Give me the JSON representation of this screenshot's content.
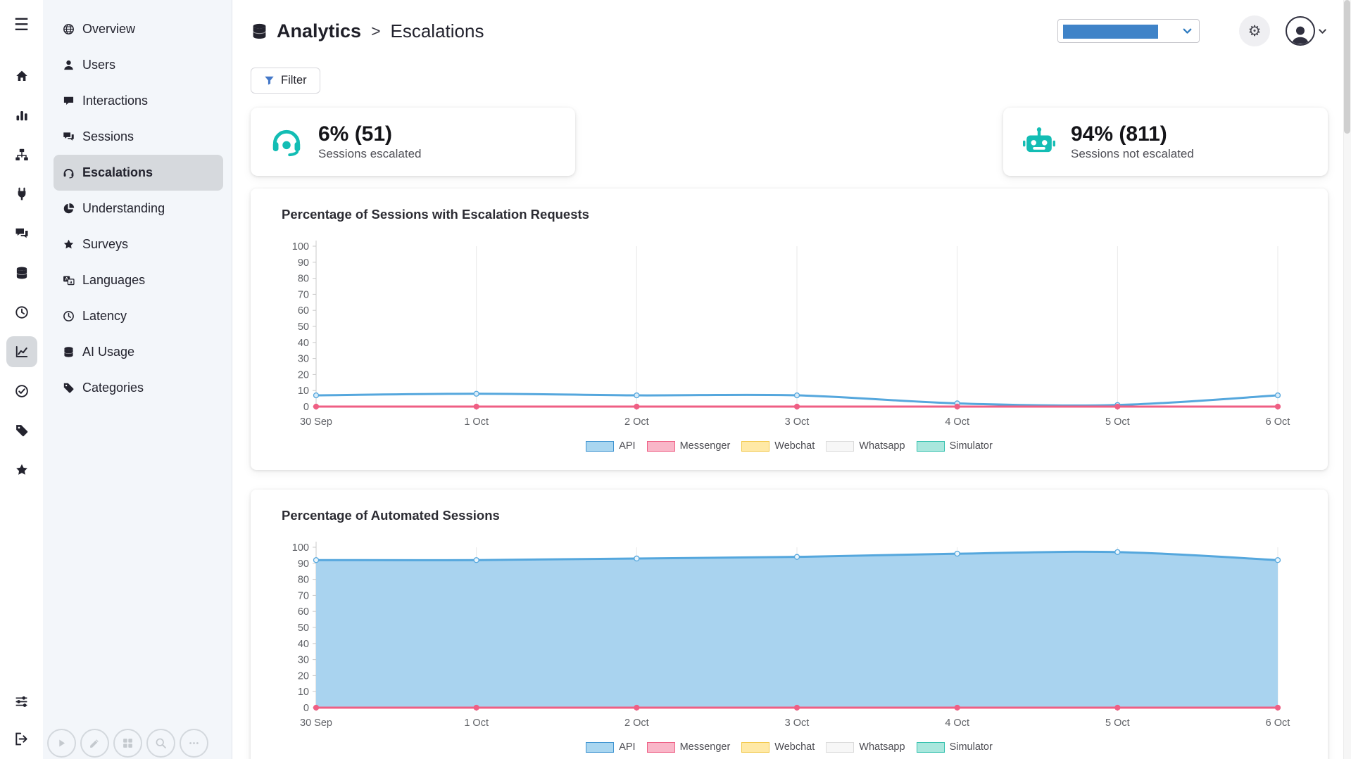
{
  "colors": {
    "teal_icon": "#13bdb4",
    "select_bar": "#3f83c8",
    "sidebar_active_bg": "#d6d9dd",
    "chart_blue": "#55a7dd",
    "chart_blue_fill": "#a9d3ef",
    "chart_pink": "#ef5f84"
  },
  "rail": {
    "menu_icon": "hamburger",
    "items": [
      {
        "name": "home",
        "icon": "home",
        "active": false
      },
      {
        "name": "metrics",
        "icon": "bar-chart",
        "active": false
      },
      {
        "name": "flows",
        "icon": "sitemap",
        "active": false
      },
      {
        "name": "integrations",
        "icon": "plug",
        "active": false
      },
      {
        "name": "conversations",
        "icon": "comments",
        "active": false
      },
      {
        "name": "data",
        "icon": "database",
        "active": false
      },
      {
        "name": "history",
        "icon": "clock",
        "active": false
      },
      {
        "name": "analytics",
        "icon": "line-chart",
        "active": true
      },
      {
        "name": "tasks",
        "icon": "check-circle",
        "active": false
      },
      {
        "name": "tags",
        "icon": "tag",
        "active": false
      },
      {
        "name": "favorites",
        "icon": "star",
        "active": false
      }
    ],
    "bottom_items": [
      {
        "name": "preferences",
        "icon": "sliders"
      },
      {
        "name": "logout",
        "icon": "sign-out"
      }
    ]
  },
  "sidebar": {
    "items": [
      {
        "label": "Overview",
        "icon": "globe",
        "active": false
      },
      {
        "label": "Users",
        "icon": "user",
        "active": false
      },
      {
        "label": "Interactions",
        "icon": "comment",
        "active": false
      },
      {
        "label": "Sessions",
        "icon": "comments",
        "active": false
      },
      {
        "label": "Escalations",
        "icon": "headset",
        "active": true
      },
      {
        "label": "Understanding",
        "icon": "pie-chart",
        "active": false
      },
      {
        "label": "Surveys",
        "icon": "star",
        "active": false
      },
      {
        "label": "Languages",
        "icon": "language",
        "active": false
      },
      {
        "label": "Latency",
        "icon": "clock",
        "active": false
      },
      {
        "label": "AI Usage",
        "icon": "database",
        "active": false
      },
      {
        "label": "Categories",
        "icon": "tag",
        "active": false
      }
    ],
    "footer_buttons": [
      {
        "name": "play",
        "icon": "play"
      },
      {
        "name": "edit",
        "icon": "pencil"
      },
      {
        "name": "grid",
        "icon": "grid"
      },
      {
        "name": "zoom",
        "icon": "search"
      },
      {
        "name": "more",
        "icon": "ellipsis"
      }
    ]
  },
  "header": {
    "section_icon": "database",
    "section": "Analytics",
    "separator": ">",
    "page": "Escalations"
  },
  "controls": {
    "filter_label": "Filter",
    "gear_icon": "gear",
    "avatar_icon": "user",
    "select_chevron_icon": "chevron-down"
  },
  "stats": [
    {
      "icon": "support-agent",
      "value": "6% (51)",
      "label": "Sessions escalated"
    },
    {
      "icon": "robot",
      "value": "94% (811)",
      "label": "Sessions not escalated"
    }
  ],
  "chart_data": [
    {
      "type": "line",
      "title": "Percentage of Sessions with Escalation Requests",
      "x": [
        "30 Sep",
        "1 Oct",
        "2 Oct",
        "3 Oct",
        "4 Oct",
        "5 Oct",
        "6 Oct"
      ],
      "ylim": [
        0,
        100
      ],
      "yticks": [
        0,
        10,
        20,
        30,
        40,
        50,
        60,
        70,
        80,
        90,
        100
      ],
      "grid": "vertical",
      "legend_position": "bottom",
      "series": [
        {
          "name": "API",
          "values": [
            7,
            8,
            7,
            7,
            2,
            1,
            7
          ],
          "color": "#55a7dd",
          "point_fill": "#d9ecf9"
        },
        {
          "name": "Messenger",
          "values": [
            0,
            0,
            0,
            0,
            0,
            0,
            0
          ],
          "color": "#ef5f84",
          "point_fill": "#ef5f84"
        }
      ],
      "legend": [
        {
          "label": "API",
          "fill": "#a9d6f0",
          "border": "#3f94d1"
        },
        {
          "label": "Messenger",
          "fill": "#f9b6c8",
          "border": "#ee5f85"
        },
        {
          "label": "Webchat",
          "fill": "#ffe9a6",
          "border": "#f2c94c"
        },
        {
          "label": "Whatsapp",
          "fill": "#f7f7f7",
          "border": "#dcdcdc"
        },
        {
          "label": "Simulator",
          "fill": "#a9e7dd",
          "border": "#35c1ae"
        }
      ]
    },
    {
      "type": "area",
      "title": "Percentage of Automated Sessions",
      "x": [
        "30 Sep",
        "1 Oct",
        "2 Oct",
        "3 Oct",
        "4 Oct",
        "5 Oct",
        "6 Oct"
      ],
      "ylim": [
        0,
        100
      ],
      "yticks": [
        0,
        10,
        20,
        30,
        40,
        50,
        60,
        70,
        80,
        90,
        100
      ],
      "grid": "vertical",
      "legend_position": "bottom",
      "series": [
        {
          "name": "API",
          "values": [
            92,
            92,
            93,
            94,
            96,
            97,
            92
          ],
          "color": "#55a7dd",
          "point_fill": "#eaf5fc",
          "fill": true,
          "fill_color": "#a9d3ef"
        },
        {
          "name": "Messenger",
          "values": [
            0,
            0,
            0,
            0,
            0,
            0,
            0
          ],
          "color": "#ef5f84",
          "point_fill": "#ef5f84"
        }
      ],
      "legend": [
        {
          "label": "API",
          "fill": "#a9d6f0",
          "border": "#3f94d1"
        },
        {
          "label": "Messenger",
          "fill": "#f9b6c8",
          "border": "#ee5f85"
        },
        {
          "label": "Webchat",
          "fill": "#ffe9a6",
          "border": "#f2c94c"
        },
        {
          "label": "Whatsapp",
          "fill": "#f7f7f7",
          "border": "#dcdcdc"
        },
        {
          "label": "Simulator",
          "fill": "#a9e7dd",
          "border": "#35c1ae"
        }
      ]
    }
  ]
}
